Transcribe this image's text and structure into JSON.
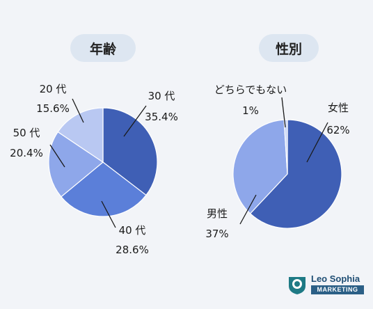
{
  "chart_data": [
    {
      "type": "pie",
      "title": "年齢",
      "slices": [
        {
          "label": "30 代",
          "value": 35.4,
          "value_label": "35.4%",
          "color": "#3f5fb5"
        },
        {
          "label": "40 代",
          "value": 28.6,
          "value_label": "28.6%",
          "color": "#5b7fd9"
        },
        {
          "label": "50 代",
          "value": 20.4,
          "value_label": "20.4%",
          "color": "#8ea7ea"
        },
        {
          "label": "20 代",
          "value": 15.6,
          "value_label": "15.6%",
          "color": "#b9c8f2"
        }
      ]
    },
    {
      "type": "pie",
      "title": "性別",
      "slices": [
        {
          "label": "女性",
          "value": 62,
          "value_label": "62%",
          "color": "#3f5fb5"
        },
        {
          "label": "男性",
          "value": 37,
          "value_label": "37%",
          "color": "#8ea7ea"
        },
        {
          "label": "どちらでもない",
          "value": 1,
          "value_label": "1%",
          "color": "#c9d6f6"
        }
      ]
    }
  ],
  "logo": {
    "name": "Leo Sophia",
    "sub": "MARKETING",
    "mark_color": "#1e7a85"
  }
}
